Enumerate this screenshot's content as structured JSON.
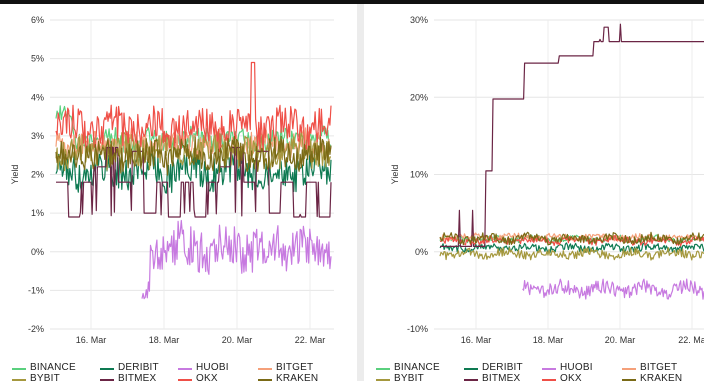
{
  "colors": {
    "BINANCE": "#5ad07e",
    "DERIBIT": "#0e7a52",
    "HUOBI": "#c77ae0",
    "BITGET": "#f5a07a",
    "BYBIT": "#a5983e",
    "BITMEX": "#6b2545",
    "OKX": "#ef4f47",
    "KRAKEN": "#7a6a16"
  },
  "legend": {
    "row1": [
      "BINANCE",
      "DERIBIT",
      "HUOBI",
      "BITGET"
    ],
    "row2": [
      "BYBIT",
      "BITMEX",
      "OKX",
      "KRAKEN"
    ]
  },
  "chart_data": [
    {
      "type": "line",
      "ylabel": "Yield",
      "ylim": [
        -2,
        6
      ],
      "yticks": [
        "6%",
        "5%",
        "4%",
        "3%",
        "2%",
        "1%",
        "0%",
        "-1%",
        "-2%"
      ],
      "xrange_days": [
        "14. Mar",
        "22. Mar"
      ],
      "xticks": [
        "16. Mar",
        "18. Mar",
        "20. Mar",
        "22. Mar"
      ],
      "grid": true,
      "series": [
        {
          "name": "BINANCE",
          "base": 2.9,
          "start_level": 3.6,
          "noise": 0.18,
          "start": "14. Mar"
        },
        {
          "name": "DERIBIT",
          "base": 2.1,
          "noise": 0.28,
          "start": "14. Mar"
        },
        {
          "name": "HUOBI",
          "base": 0.1,
          "noise": 0.35,
          "start": "17.5 Mar",
          "dip": [
            -1.3,
            "17.5 Mar"
          ]
        },
        {
          "name": "BITGET",
          "base": 2.8,
          "noise": 0.2,
          "start": "14. Mar"
        },
        {
          "name": "BYBIT",
          "base": 2.6,
          "noise": 0.25,
          "start": "14. Mar"
        },
        {
          "name": "BITMEX",
          "levels": [
            1.8,
            0.9,
            1.8,
            2.2,
            2.7,
            1.8,
            2.6,
            1.0,
            1.8,
            0.9
          ],
          "start": "14. Mar"
        },
        {
          "name": "OKX",
          "base": 3.2,
          "noise": 0.3,
          "start": "14. Mar",
          "spike": [
            4.9,
            "19.8 Mar"
          ]
        },
        {
          "name": "KRAKEN",
          "base": 2.5,
          "noise": 0.25,
          "start": "14. Mar"
        }
      ]
    },
    {
      "type": "line",
      "ylabel": "Yield",
      "ylim": [
        -10,
        33
      ],
      "yticks": [
        "30%",
        "20%",
        "10%",
        "0%",
        "-10%"
      ],
      "xticks": [
        "16. Mar",
        "18. Mar",
        "20. Mar",
        "22. Ma"
      ],
      "grid": true,
      "series": [
        {
          "name": "BINANCE",
          "base": 2.5,
          "noise": 0.4
        },
        {
          "name": "DERIBIT",
          "base": 1.3,
          "noise": 0.5
        },
        {
          "name": "HUOBI",
          "base": -4.5,
          "noise": 1.0,
          "start": "17.5 Mar"
        },
        {
          "name": "BITGET",
          "base": 2.8,
          "noise": 0.4
        },
        {
          "name": "BYBIT",
          "base": 0.5,
          "noise": 0.6
        },
        {
          "name": "BITMEX",
          "levels": [
            1.5,
            22,
            27,
            29,
            30
          ],
          "peak": 32
        },
        {
          "name": "OKX",
          "base": 2.3,
          "noise": 0.5
        },
        {
          "name": "KRAKEN",
          "base": 2.6,
          "noise": 0.6
        }
      ]
    }
  ]
}
